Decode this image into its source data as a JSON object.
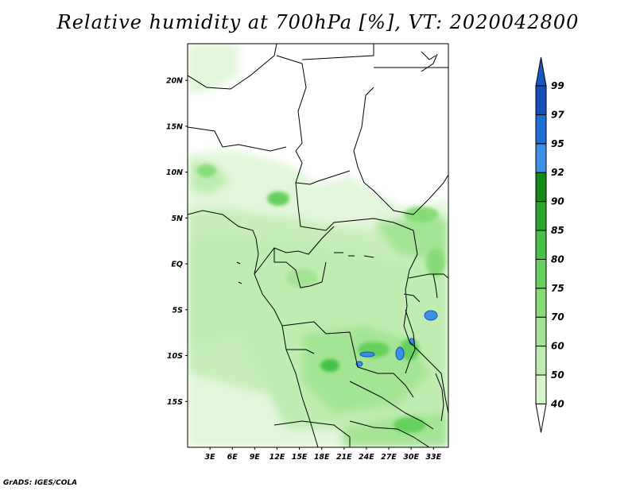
{
  "title": "Relative humidity at 700hPa [%], VT: 2020042800",
  "footer": "GrADS: IGES/COLA",
  "map": {
    "lon_range": [
      0,
      35
    ],
    "lat_range": [
      -20,
      24
    ],
    "lat_ticks": [
      {
        "value": 20,
        "label": "20N"
      },
      {
        "value": 15,
        "label": "15N"
      },
      {
        "value": 10,
        "label": "10N"
      },
      {
        "value": 5,
        "label": "5N"
      },
      {
        "value": 0,
        "label": "EQ"
      },
      {
        "value": -5,
        "label": "5S"
      },
      {
        "value": -10,
        "label": "10S"
      },
      {
        "value": -15,
        "label": "15S"
      }
    ],
    "lon_ticks": [
      {
        "value": 3,
        "label": "3E"
      },
      {
        "value": 6,
        "label": "6E"
      },
      {
        "value": 9,
        "label": "9E"
      },
      {
        "value": 12,
        "label": "12E"
      },
      {
        "value": 15,
        "label": "15E"
      },
      {
        "value": 18,
        "label": "18E"
      },
      {
        "value": 21,
        "label": "21E"
      },
      {
        "value": 24,
        "label": "24E"
      },
      {
        "value": 27,
        "label": "27E"
      },
      {
        "value": 30,
        "label": "30E"
      },
      {
        "value": 33,
        "label": "33E"
      }
    ]
  },
  "colorbar": {
    "levels": [
      "40",
      "50",
      "60",
      "70",
      "75",
      "80",
      "85",
      "90",
      "92",
      "95",
      "97",
      "99"
    ],
    "colors": [
      "#f0fbea",
      "#d8f4cc",
      "#bfedb1",
      "#a4e495",
      "#86db78",
      "#66d05c",
      "#45c145",
      "#2ba52b",
      "#158a15",
      "#3d8fe8",
      "#1f6fd8",
      "#1550b8"
    ],
    "below_color": "#ffffff",
    "above_color": "#1a56c0"
  }
}
